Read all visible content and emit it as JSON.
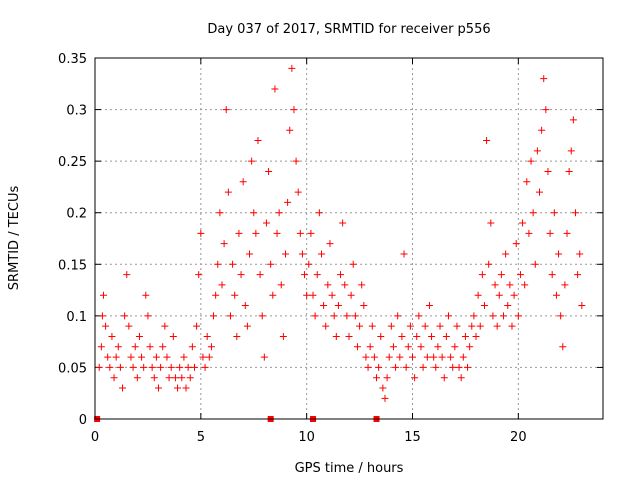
{
  "chart_data": {
    "type": "scatter",
    "title": "Day 037 of 2017, SRMTID for receiver p556",
    "xlabel": "GPS time / hours",
    "ylabel": "SRMTID / TECUs",
    "xlim": [
      0,
      24
    ],
    "ylim": [
      0,
      0.35
    ],
    "x_ticks": [
      0,
      5,
      10,
      15,
      20
    ],
    "x_tick_labels": [
      "0",
      "5",
      "10",
      "15",
      "20"
    ],
    "y_ticks": [
      0,
      0.05,
      0.1,
      0.15,
      0.2,
      0.25,
      0.3,
      0.35
    ],
    "y_tick_labels": [
      "0",
      "0.05",
      "0.1",
      "0.15",
      "0.2",
      "0.25",
      "0.3",
      "0.35"
    ],
    "grid": true,
    "marker": "plus",
    "color": "#ff0000",
    "series": [
      {
        "name": "SRMTID",
        "points": [
          [
            0.2,
            0.05
          ],
          [
            0.3,
            0.07
          ],
          [
            0.35,
            0.1
          ],
          [
            0.4,
            0.12
          ],
          [
            0.5,
            0.09
          ],
          [
            0.6,
            0.06
          ],
          [
            0.7,
            0.05
          ],
          [
            0.8,
            0.08
          ],
          [
            0.9,
            0.04
          ],
          [
            1.0,
            0.06
          ],
          [
            1.1,
            0.07
          ],
          [
            1.2,
            0.05
          ],
          [
            1.3,
            0.03
          ],
          [
            1.4,
            0.1
          ],
          [
            1.5,
            0.14
          ],
          [
            1.6,
            0.09
          ],
          [
            1.7,
            0.06
          ],
          [
            1.8,
            0.05
          ],
          [
            1.9,
            0.07
          ],
          [
            2.0,
            0.04
          ],
          [
            2.1,
            0.08
          ],
          [
            2.2,
            0.06
          ],
          [
            2.3,
            0.05
          ],
          [
            2.4,
            0.12
          ],
          [
            2.5,
            0.1
          ],
          [
            2.6,
            0.07
          ],
          [
            2.7,
            0.05
          ],
          [
            2.8,
            0.04
          ],
          [
            2.9,
            0.06
          ],
          [
            3.0,
            0.03
          ],
          [
            3.1,
            0.05
          ],
          [
            3.2,
            0.07
          ],
          [
            3.3,
            0.09
          ],
          [
            3.4,
            0.06
          ],
          [
            3.5,
            0.04
          ],
          [
            3.6,
            0.05
          ],
          [
            3.7,
            0.08
          ],
          [
            3.8,
            0.04
          ],
          [
            3.9,
            0.03
          ],
          [
            4.0,
            0.05
          ],
          [
            4.1,
            0.04
          ],
          [
            4.2,
            0.06
          ],
          [
            4.3,
            0.03
          ],
          [
            4.4,
            0.05
          ],
          [
            4.5,
            0.04
          ],
          [
            4.6,
            0.07
          ],
          [
            4.7,
            0.05
          ],
          [
            4.8,
            0.09
          ],
          [
            4.9,
            0.14
          ],
          [
            5.0,
            0.18
          ],
          [
            5.1,
            0.06
          ],
          [
            5.2,
            0.05
          ],
          [
            5.3,
            0.08
          ],
          [
            5.4,
            0.06
          ],
          [
            5.5,
            0.07
          ],
          [
            5.6,
            0.1
          ],
          [
            5.7,
            0.12
          ],
          [
            5.8,
            0.15
          ],
          [
            5.9,
            0.2
          ],
          [
            6.0,
            0.13
          ],
          [
            6.1,
            0.17
          ],
          [
            6.2,
            0.3
          ],
          [
            6.3,
            0.22
          ],
          [
            6.4,
            0.1
          ],
          [
            6.5,
            0.15
          ],
          [
            6.6,
            0.12
          ],
          [
            6.7,
            0.08
          ],
          [
            6.8,
            0.18
          ],
          [
            6.9,
            0.14
          ],
          [
            7.0,
            0.23
          ],
          [
            7.1,
            0.11
          ],
          [
            7.2,
            0.09
          ],
          [
            7.3,
            0.16
          ],
          [
            7.4,
            0.25
          ],
          [
            7.5,
            0.2
          ],
          [
            7.6,
            0.18
          ],
          [
            7.7,
            0.27
          ],
          [
            7.8,
            0.14
          ],
          [
            7.9,
            0.1
          ],
          [
            8.0,
            0.06
          ],
          [
            8.1,
            0.19
          ],
          [
            8.2,
            0.24
          ],
          [
            8.3,
            0.15
          ],
          [
            8.4,
            0.12
          ],
          [
            8.5,
            0.32
          ],
          [
            8.6,
            0.18
          ],
          [
            8.7,
            0.2
          ],
          [
            8.8,
            0.13
          ],
          [
            8.9,
            0.08
          ],
          [
            9.0,
            0.16
          ],
          [
            9.1,
            0.21
          ],
          [
            9.2,
            0.28
          ],
          [
            9.3,
            0.34
          ],
          [
            9.4,
            0.3
          ],
          [
            9.5,
            0.25
          ],
          [
            9.6,
            0.22
          ],
          [
            9.7,
            0.18
          ],
          [
            9.8,
            0.16
          ],
          [
            9.9,
            0.14
          ],
          [
            10.0,
            0.12
          ],
          [
            10.1,
            0.15
          ],
          [
            10.2,
            0.18
          ],
          [
            10.3,
            0.12
          ],
          [
            10.4,
            0.1
          ],
          [
            10.5,
            0.14
          ],
          [
            10.6,
            0.2
          ],
          [
            10.7,
            0.16
          ],
          [
            10.8,
            0.11
          ],
          [
            10.9,
            0.09
          ],
          [
            11.0,
            0.13
          ],
          [
            11.1,
            0.17
          ],
          [
            11.2,
            0.12
          ],
          [
            11.3,
            0.1
          ],
          [
            11.4,
            0.08
          ],
          [
            11.5,
            0.11
          ],
          [
            11.6,
            0.14
          ],
          [
            11.7,
            0.19
          ],
          [
            11.8,
            0.13
          ],
          [
            11.9,
            0.1
          ],
          [
            12.0,
            0.08
          ],
          [
            12.1,
            0.12
          ],
          [
            12.2,
            0.15
          ],
          [
            12.3,
            0.1
          ],
          [
            12.4,
            0.07
          ],
          [
            12.5,
            0.09
          ],
          [
            12.6,
            0.13
          ],
          [
            12.7,
            0.11
          ],
          [
            12.8,
            0.06
          ],
          [
            12.9,
            0.05
          ],
          [
            13.0,
            0.07
          ],
          [
            13.1,
            0.09
          ],
          [
            13.2,
            0.06
          ],
          [
            13.3,
            0.04
          ],
          [
            13.4,
            0.05
          ],
          [
            13.5,
            0.08
          ],
          [
            13.6,
            0.03
          ],
          [
            13.7,
            0.02
          ],
          [
            13.8,
            0.04
          ],
          [
            13.9,
            0.06
          ],
          [
            14.0,
            0.09
          ],
          [
            14.1,
            0.07
          ],
          [
            14.2,
            0.05
          ],
          [
            14.3,
            0.1
          ],
          [
            14.4,
            0.06
          ],
          [
            14.5,
            0.08
          ],
          [
            14.6,
            0.16
          ],
          [
            14.7,
            0.05
          ],
          [
            14.8,
            0.07
          ],
          [
            14.9,
            0.09
          ],
          [
            15.0,
            0.06
          ],
          [
            15.1,
            0.04
          ],
          [
            15.2,
            0.08
          ],
          [
            15.3,
            0.1
          ],
          [
            15.4,
            0.07
          ],
          [
            15.5,
            0.05
          ],
          [
            15.6,
            0.09
          ],
          [
            15.7,
            0.06
          ],
          [
            15.8,
            0.11
          ],
          [
            15.9,
            0.08
          ],
          [
            16.0,
            0.06
          ],
          [
            16.1,
            0.05
          ],
          [
            16.2,
            0.07
          ],
          [
            16.3,
            0.09
          ],
          [
            16.4,
            0.06
          ],
          [
            16.5,
            0.04
          ],
          [
            16.6,
            0.08
          ],
          [
            16.7,
            0.1
          ],
          [
            16.8,
            0.06
          ],
          [
            16.9,
            0.05
          ],
          [
            17.0,
            0.07
          ],
          [
            17.1,
            0.09
          ],
          [
            17.2,
            0.05
          ],
          [
            17.3,
            0.04
          ],
          [
            17.4,
            0.06
          ],
          [
            17.5,
            0.08
          ],
          [
            17.6,
            0.05
          ],
          [
            17.7,
            0.07
          ],
          [
            17.8,
            0.09
          ],
          [
            17.9,
            0.1
          ],
          [
            18.0,
            0.08
          ],
          [
            18.1,
            0.12
          ],
          [
            18.2,
            0.09
          ],
          [
            18.3,
            0.14
          ],
          [
            18.4,
            0.11
          ],
          [
            18.5,
            0.27
          ],
          [
            18.6,
            0.15
          ],
          [
            18.7,
            0.19
          ],
          [
            18.8,
            0.1
          ],
          [
            18.9,
            0.13
          ],
          [
            19.0,
            0.09
          ],
          [
            19.1,
            0.12
          ],
          [
            19.2,
            0.14
          ],
          [
            19.3,
            0.1
          ],
          [
            19.4,
            0.16
          ],
          [
            19.5,
            0.11
          ],
          [
            19.6,
            0.13
          ],
          [
            19.7,
            0.09
          ],
          [
            19.8,
            0.12
          ],
          [
            19.9,
            0.17
          ],
          [
            20.0,
            0.1
          ],
          [
            20.1,
            0.14
          ],
          [
            20.2,
            0.19
          ],
          [
            20.3,
            0.13
          ],
          [
            20.4,
            0.23
          ],
          [
            20.5,
            0.18
          ],
          [
            20.6,
            0.25
          ],
          [
            20.7,
            0.2
          ],
          [
            20.8,
            0.15
          ],
          [
            20.9,
            0.26
          ],
          [
            21.0,
            0.22
          ],
          [
            21.1,
            0.28
          ],
          [
            21.2,
            0.33
          ],
          [
            21.3,
            0.3
          ],
          [
            21.4,
            0.24
          ],
          [
            21.5,
            0.18
          ],
          [
            21.6,
            0.14
          ],
          [
            21.7,
            0.2
          ],
          [
            21.8,
            0.12
          ],
          [
            21.9,
            0.16
          ],
          [
            22.0,
            0.1
          ],
          [
            22.1,
            0.07
          ],
          [
            22.2,
            0.13
          ],
          [
            22.3,
            0.18
          ],
          [
            22.4,
            0.24
          ],
          [
            22.5,
            0.26
          ],
          [
            22.6,
            0.29
          ],
          [
            22.7,
            0.2
          ],
          [
            22.8,
            0.14
          ],
          [
            22.9,
            0.16
          ],
          [
            23.0,
            0.11
          ]
        ]
      }
    ],
    "baseline_points": [
      [
        0.1,
        0
      ],
      [
        8.3,
        0
      ],
      [
        10.3,
        0
      ],
      [
        13.3,
        0
      ]
    ]
  }
}
